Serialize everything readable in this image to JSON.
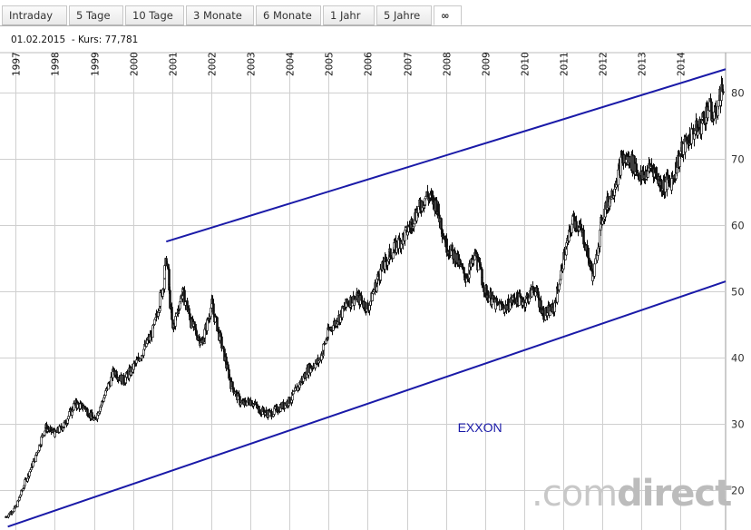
{
  "tabs": [
    {
      "label": "Intraday"
    },
    {
      "label": "5 Tage"
    },
    {
      "label": "10 Tage"
    },
    {
      "label": "3 Monate"
    },
    {
      "label": "6 Monate"
    },
    {
      "label": "1 Jahr"
    },
    {
      "label": "5 Jahre"
    },
    {
      "label": "∞",
      "active": true
    }
  ],
  "info": {
    "date": "01.02.2015",
    "kurs_label": "- Kurs:",
    "kurs_value": "77,781"
  },
  "brand": {
    "dot": ".",
    "part1": "com",
    "part2": "direct"
  },
  "chart_data": {
    "type": "candlestick",
    "title": "",
    "annotation": "EXXON",
    "annotation_color": "#1a1aa8",
    "trendline_color": "#1a1aa8",
    "x_ticks": [
      "1997",
      "1998",
      "1999",
      "2000",
      "2001",
      "2002",
      "2003",
      "2004",
      "2005",
      "2006",
      "2007",
      "2008",
      "2009",
      "2010",
      "2011",
      "2012",
      "2013",
      "2014"
    ],
    "y_ticks": [
      20,
      30,
      40,
      50,
      60,
      70,
      80
    ],
    "ylim": [
      14,
      86
    ],
    "xlim": [
      1996.6,
      2015.15
    ],
    "grid": true,
    "y_axis_position": "right",
    "series": [
      {
        "values": [
          {
            "x": 1996.75,
            "y": 16.0
          },
          {
            "x": 1997.0,
            "y": 17.5
          },
          {
            "x": 1997.25,
            "y": 21.5
          },
          {
            "x": 1997.5,
            "y": 25.0
          },
          {
            "x": 1997.75,
            "y": 29.5
          },
          {
            "x": 1998.0,
            "y": 28.5
          },
          {
            "x": 1998.25,
            "y": 30.0
          },
          {
            "x": 1998.5,
            "y": 33.0
          },
          {
            "x": 1998.75,
            "y": 32.5
          },
          {
            "x": 1999.0,
            "y": 30.5
          },
          {
            "x": 1999.25,
            "y": 34.0
          },
          {
            "x": 1999.5,
            "y": 38.0
          },
          {
            "x": 1999.75,
            "y": 36.5
          },
          {
            "x": 2000.0,
            "y": 38.5
          },
          {
            "x": 2000.25,
            "y": 41.0
          },
          {
            "x": 2000.5,
            "y": 44.0
          },
          {
            "x": 2000.75,
            "y": 50.5
          },
          {
            "x": 2000.85,
            "y": 55.0
          },
          {
            "x": 2001.0,
            "y": 44.0
          },
          {
            "x": 2001.25,
            "y": 50.0
          },
          {
            "x": 2001.5,
            "y": 45.0
          },
          {
            "x": 2001.75,
            "y": 42.0
          },
          {
            "x": 2002.0,
            "y": 48.0
          },
          {
            "x": 2002.25,
            "y": 42.0
          },
          {
            "x": 2002.5,
            "y": 36.0
          },
          {
            "x": 2002.75,
            "y": 33.0
          },
          {
            "x": 2003.0,
            "y": 33.5
          },
          {
            "x": 2003.25,
            "y": 32.0
          },
          {
            "x": 2003.5,
            "y": 31.5
          },
          {
            "x": 2003.75,
            "y": 32.5
          },
          {
            "x": 2004.0,
            "y": 33.5
          },
          {
            "x": 2004.25,
            "y": 36.0
          },
          {
            "x": 2004.5,
            "y": 38.5
          },
          {
            "x": 2004.75,
            "y": 39.5
          },
          {
            "x": 2005.0,
            "y": 44.0
          },
          {
            "x": 2005.25,
            "y": 46.0
          },
          {
            "x": 2005.5,
            "y": 48.5
          },
          {
            "x": 2005.75,
            "y": 49.0
          },
          {
            "x": 2006.0,
            "y": 47.5
          },
          {
            "x": 2006.25,
            "y": 52.0
          },
          {
            "x": 2006.5,
            "y": 55.0
          },
          {
            "x": 2006.75,
            "y": 57.0
          },
          {
            "x": 2007.0,
            "y": 59.0
          },
          {
            "x": 2007.25,
            "y": 62.0
          },
          {
            "x": 2007.5,
            "y": 64.5
          },
          {
            "x": 2007.75,
            "y": 63.0
          },
          {
            "x": 2008.0,
            "y": 57.0
          },
          {
            "x": 2008.25,
            "y": 55.0
          },
          {
            "x": 2008.5,
            "y": 52.0
          },
          {
            "x": 2008.75,
            "y": 55.5
          },
          {
            "x": 2009.0,
            "y": 50.0
          },
          {
            "x": 2009.25,
            "y": 48.0
          },
          {
            "x": 2009.5,
            "y": 47.5
          },
          {
            "x": 2009.75,
            "y": 49.0
          },
          {
            "x": 2010.0,
            "y": 48.5
          },
          {
            "x": 2010.25,
            "y": 50.5
          },
          {
            "x": 2010.5,
            "y": 46.5
          },
          {
            "x": 2010.75,
            "y": 47.5
          },
          {
            "x": 2011.0,
            "y": 55.0
          },
          {
            "x": 2011.25,
            "y": 61.0
          },
          {
            "x": 2011.5,
            "y": 58.5
          },
          {
            "x": 2011.75,
            "y": 52.0
          },
          {
            "x": 2012.0,
            "y": 61.5
          },
          {
            "x": 2012.25,
            "y": 65.0
          },
          {
            "x": 2012.5,
            "y": 70.0
          },
          {
            "x": 2012.75,
            "y": 69.5
          },
          {
            "x": 2013.0,
            "y": 67.0
          },
          {
            "x": 2013.25,
            "y": 69.0
          },
          {
            "x": 2013.5,
            "y": 66.0
          },
          {
            "x": 2013.75,
            "y": 66.5
          },
          {
            "x": 2014.0,
            "y": 71.0
          },
          {
            "x": 2014.25,
            "y": 73.5
          },
          {
            "x": 2014.5,
            "y": 75.0
          },
          {
            "x": 2014.7,
            "y": 78.0
          },
          {
            "x": 2014.85,
            "y": 76.0
          },
          {
            "x": 2015.0,
            "y": 79.5
          },
          {
            "x": 2015.08,
            "y": 81.0
          }
        ]
      }
    ],
    "trendlines": [
      {
        "x1": 1996.8,
        "y1": 14.5,
        "x2": 2015.15,
        "y2": 51.5
      },
      {
        "x1": 2000.85,
        "y1": 57.5,
        "x2": 2015.15,
        "y2": 83.5
      }
    ]
  }
}
